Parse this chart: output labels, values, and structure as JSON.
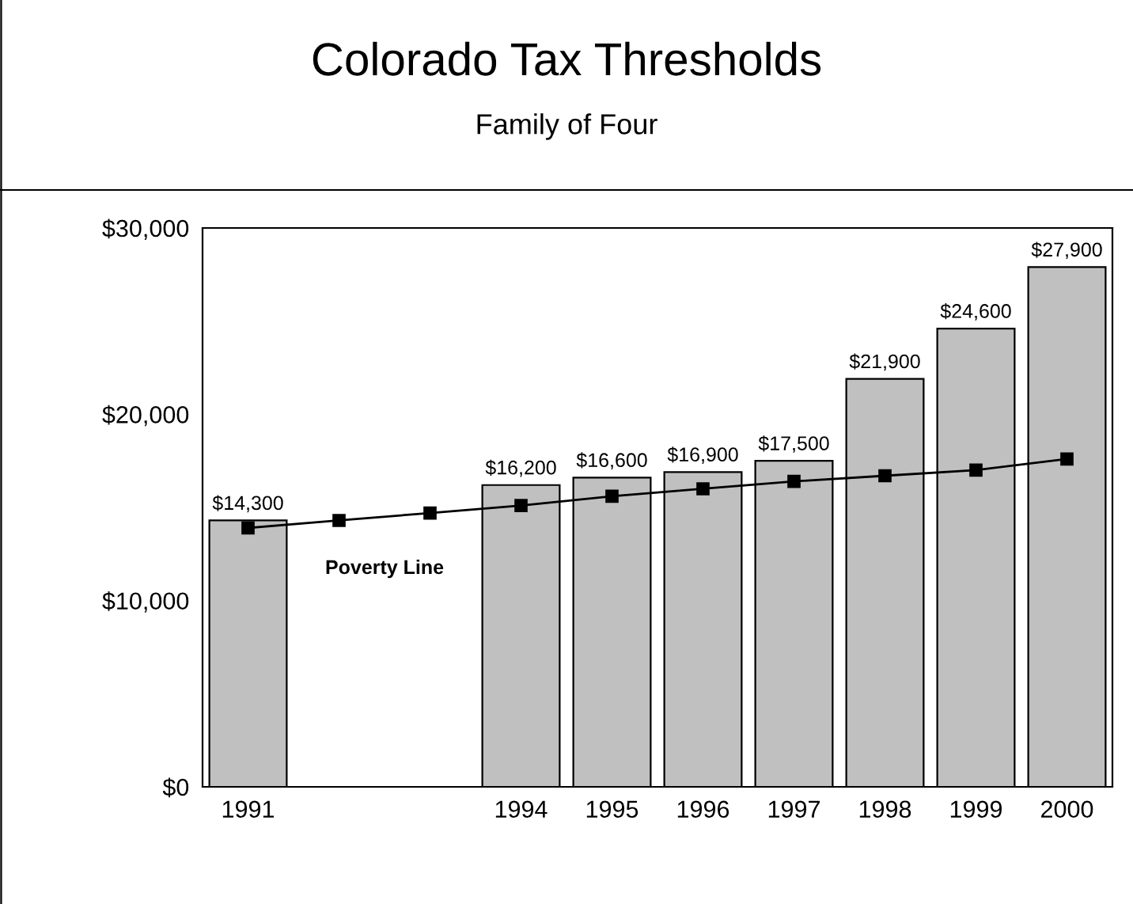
{
  "chart_data": {
    "type": "bar",
    "title": "Colorado Tax Thresholds",
    "subtitle": "Family of Four",
    "categories": [
      "1991",
      null,
      null,
      "1994",
      "1995",
      "1996",
      "1997",
      "1998",
      "1999",
      "2000"
    ],
    "series": [
      {
        "color": "#c0c0c0",
        "values": [
          14300,
          null,
          null,
          16200,
          16600,
          16900,
          17500,
          21900,
          24600,
          27900
        ],
        "value_labels": [
          "$14,300",
          null,
          null,
          "$16,200",
          "$16,600",
          "$16,900",
          "$17,500",
          "$21,900",
          "$24,600",
          "$27,900"
        ]
      },
      {
        "type": "line",
        "name": "Poverty Line",
        "color": "#000000",
        "marker": "square",
        "line_style": "solid",
        "values": [
          13900,
          14300,
          14700,
          15100,
          15600,
          16000,
          16400,
          16700,
          17000,
          17600
        ]
      }
    ],
    "ylim": [
      0,
      30000
    ],
    "yticks": [
      {
        "value": 0,
        "label": "$0"
      },
      {
        "value": 10000,
        "label": "$10,000"
      },
      {
        "value": 20000,
        "label": "$20,000"
      },
      {
        "value": 30000,
        "label": "$30,000"
      }
    ],
    "grid": false,
    "legend": false
  }
}
